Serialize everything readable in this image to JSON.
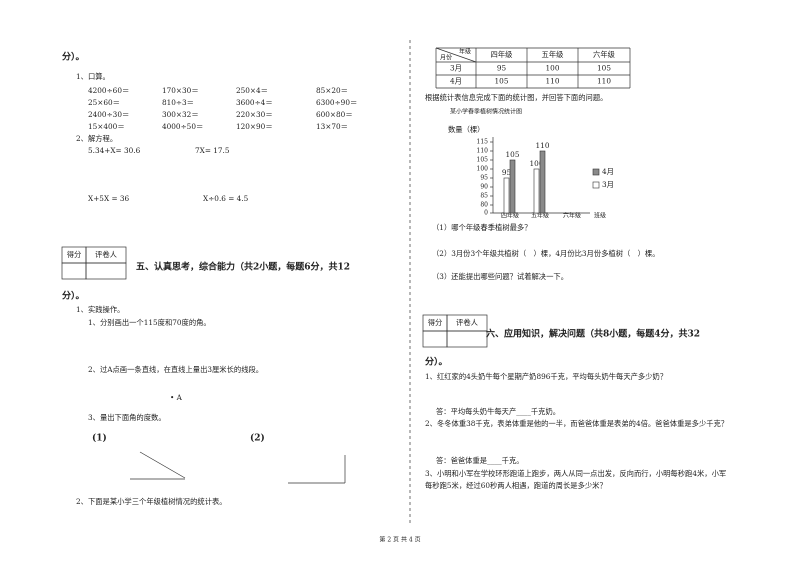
{
  "left": {
    "cont_1": "分）。",
    "q1": "1、口算。",
    "oral": [
      [
        "4200÷60＝",
        "170×30＝",
        "250×4＝",
        "85×20＝"
      ],
      [
        "25×60＝",
        "810÷3＝",
        "3600÷4＝",
        "6300÷90＝"
      ],
      [
        "2400÷30＝",
        "300×32＝",
        "220×30＝",
        "600×80＝"
      ],
      [
        "15×400＝",
        "4000÷50＝",
        "120×90＝",
        "13×70＝"
      ]
    ],
    "q2": "2、解方程。",
    "equations": [
      "5.34+X= 30.6",
      "7X= 17.5",
      "X+5X = 36",
      "X÷0.6 = 4.5"
    ],
    "score_box": [
      "得分",
      "评卷人"
    ],
    "section5": "五、认真思考，综合能力（共2小题，每题6分，共12",
    "cont_5": "分）。",
    "p1": "1、实践操作。",
    "p1_1": "1、分别画出一个115度和70度的角。",
    "p1_2": "2、过A点画一条直线，在直线上量出3厘米长的线段。",
    "point": "• A",
    "p1_3": "3、量出下面角的度数。",
    "angles": [
      "(1)",
      "(2)"
    ],
    "p2": "2、下面是某小学三个年级植树情况的统计表。"
  },
  "right": {
    "table": {
      "corner_top": "年级",
      "corner_bottom": "月份",
      "columns": [
        "四年级",
        "五年级",
        "六年级"
      ],
      "rows": [
        [
          "3月",
          "95",
          "100",
          "105"
        ],
        [
          "4月",
          "105",
          "110",
          "110"
        ]
      ]
    },
    "instruction": "根据统计表信息完成下面的统计图，并回答下面的问题。",
    "chart": {
      "title": "某小学春季植树情况统计图",
      "y_label": "数量（棵）",
      "x_label": "班级",
      "categories": [
        "四年级",
        "五年级",
        "六年级"
      ],
      "series": [
        {
          "name": "3月",
          "color": "#ffffff",
          "values": [
            95,
            100,
            null
          ]
        },
        {
          "name": "4月",
          "color": "#8a8a8a",
          "values": [
            105,
            110,
            null
          ]
        }
      ],
      "yticks": [
        0,
        80,
        85,
        90,
        95,
        100,
        105,
        110,
        115
      ]
    },
    "cq1": "（1）哪个年级春季植树最多？",
    "cq2": "（2）3月份3个年级共植树（　）棵，4月份比3月份多植树（　）棵。",
    "cq3": "（3）还能提出哪些问题？试着解决一下。",
    "score_box": [
      "得分",
      "评卷人"
    ],
    "section6": "六、应用知识，解决问题（共8小题，每题4分，共32",
    "cont_6": "分）。",
    "a1": "1、红红家的4头奶牛每个星期产奶896千克，平均每头奶牛每天产多少奶？",
    "a1_ans": "答：平均每头奶牛每天产____千克奶。",
    "a2": "2、冬冬体重38千克，表弟体重是他的一半，而爸爸体重是表弟的4倍。爸爸体重是多少千克？",
    "a2_ans": "答：爸爸体重是____千克。",
    "a3_1": "3、小明和小军在学校环形跑道上跑步，两人从同一点出发，反向而行，小明每秒跑4米，小军",
    "a3_2": "每秒跑5米，经过60秒两人相遇，跑道的周长是多少米？"
  },
  "footer": "第 2 页 共 4 页"
}
